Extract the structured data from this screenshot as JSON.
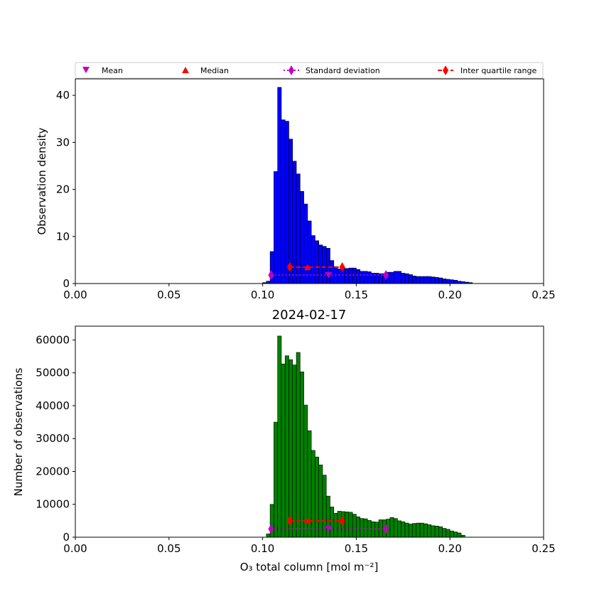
{
  "chart_data": [
    {
      "type": "bar",
      "title": "",
      "xlabel": "",
      "ylabel": "Observation density",
      "xlim": [
        0.0,
        0.25
      ],
      "ylim": [
        0,
        43.5
      ],
      "xticks": [
        "0.00",
        "0.05",
        "0.10",
        "0.15",
        "0.20",
        "0.25"
      ],
      "yticks": [
        "0",
        "10",
        "20",
        "30",
        "40"
      ],
      "bar_color": "#0000ff",
      "bin_start": 0.1,
      "bin_width": 0.002,
      "values": [
        0.2,
        0.5,
        6.8,
        23.8,
        41.7,
        34.8,
        34.5,
        30.7,
        26.0,
        23.3,
        19.6,
        16.9,
        13.3,
        10.2,
        9.1,
        8.2,
        7.9,
        7.5,
        4.9,
        3.6,
        3.1,
        3.3,
        3.2,
        3.3,
        3.3,
        3.0,
        2.6,
        2.6,
        2.5,
        2.2,
        2.2,
        2.1,
        2.1,
        2.4,
        2.4,
        2.6,
        2.6,
        2.2,
        2.1,
        1.9,
        1.6,
        1.5,
        1.5,
        1.5,
        1.5,
        1.4,
        1.3,
        1.2,
        1.0,
        0.9,
        0.8,
        0.7,
        0.5,
        0.4,
        0.3,
        0.2
      ],
      "stats": {
        "mean": 0.1352,
        "median": 0.124,
        "std_range": [
          0.1045,
          0.1658
        ],
        "iqr_range": [
          0.1145,
          0.1425
        ],
        "std_y": 1.8,
        "iqr_y": 3.5
      },
      "grid": false
    },
    {
      "type": "bar",
      "title": "2024-02-17",
      "xlabel": "O₃ total column [mol m⁻²]",
      "ylabel": "Number of observations",
      "xlim": [
        0.0,
        0.25
      ],
      "ylim": [
        0,
        64200
      ],
      "xticks": [
        "0.00",
        "0.05",
        "0.10",
        "0.15",
        "0.20",
        "0.25"
      ],
      "yticks": [
        "0",
        "10000",
        "20000",
        "30000",
        "40000",
        "50000",
        "60000"
      ],
      "bar_color": "#008000",
      "bin_start": 0.1,
      "bin_width": 0.002,
      "values": [
        0,
        1000,
        10000,
        35000,
        61200,
        52700,
        55200,
        54000,
        52400,
        56200,
        50300,
        40200,
        32400,
        26400,
        24400,
        22000,
        18900,
        12500,
        9200,
        7300,
        7900,
        7800,
        7700,
        7600,
        7000,
        6200,
        5700,
        5600,
        5100,
        4700,
        4600,
        5300,
        5300,
        5500,
        6000,
        5700,
        5000,
        4700,
        4300,
        4000,
        4200,
        4300,
        4300,
        4100,
        3800,
        3500,
        3400,
        3200,
        2700,
        2400,
        1900,
        1600,
        1300,
        600,
        0,
        0
      ],
      "stats": {
        "mean": 0.1352,
        "median": 0.124,
        "std_range": [
          0.1045,
          0.1658
        ],
        "iqr_range": [
          0.1145,
          0.1425
        ],
        "std_y": 2500,
        "iqr_y": 5000
      },
      "grid": false
    }
  ],
  "legend": {
    "placement": "top",
    "items": [
      {
        "label": "Mean",
        "marker": "triangle-down",
        "color": "#bf00bf"
      },
      {
        "label": "Median",
        "marker": "triangle-up",
        "color": "#ff0000"
      },
      {
        "label": "Standard deviation",
        "marker": "diamond-dotted",
        "color": "#bf00bf"
      },
      {
        "label": "Inter quartile range",
        "marker": "diamond-dashed",
        "color": "#ff0000"
      }
    ]
  }
}
